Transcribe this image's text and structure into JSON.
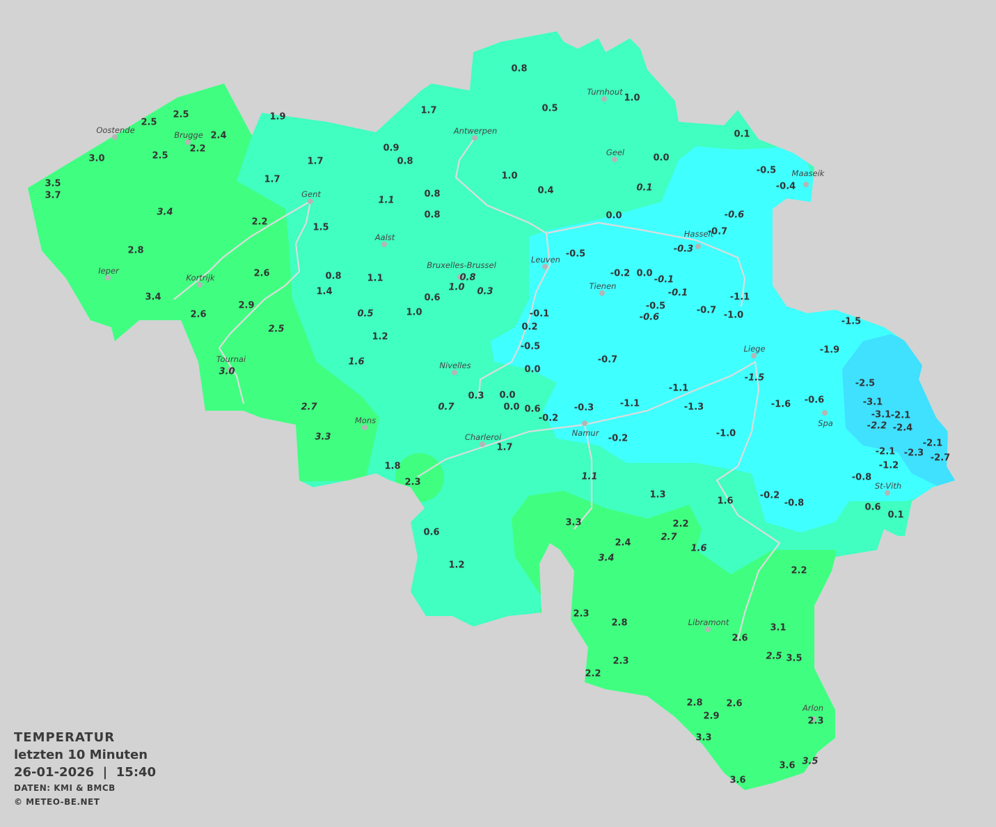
{
  "legend": {
    "title": "TEMPERATUR",
    "subtitle": "letzten 10 Minuten",
    "datetime": "26-01-2026  |  15:40",
    "source": "DATEN: KMI & BMCB",
    "copyright": "© METEO-BE.NET"
  },
  "colors": {
    "background": "#d3d3d3",
    "zone_2_to_4": "#40ff80",
    "zone_0_to_2": "#40ffc0",
    "zone_minus2_to_0": "#40ffff",
    "zone_below_minus2": "#40e0ff",
    "rivers": "#dcdcdc"
  },
  "unit": "°C",
  "cities": [
    "Oostende",
    "Brugge",
    "Antwerpen",
    "Turnhout",
    "Geel",
    "Maaseik",
    "Gent",
    "Hasselt",
    "Aalst",
    "Leuven",
    "Bruxelles-Brussel",
    "Ieper",
    "Kortrijk",
    "Tienen",
    "Liege",
    "Nivelles",
    "Tournai",
    "Spa",
    "Namur",
    "Mons",
    "Charleroi",
    "St-Vith",
    "Libramont",
    "Arlon"
  ],
  "stations": [
    {
      "v": "0.8"
    },
    {
      "v": "0.5"
    },
    {
      "v": "1.0"
    },
    {
      "v": "1.7"
    },
    {
      "v": "1.9"
    },
    {
      "v": "2.5"
    },
    {
      "v": "2.5"
    },
    {
      "v": "2.4"
    },
    {
      "v": "2.2"
    },
    {
      "v": "2.5"
    },
    {
      "v": "3.0"
    },
    {
      "v": "3.5"
    },
    {
      "v": "3.7"
    },
    {
      "v": "0.9"
    },
    {
      "v": "0.8"
    },
    {
      "v": "1.7"
    },
    {
      "v": "1.7"
    },
    {
      "v": "1.0"
    },
    {
      "v": "0.4"
    },
    {
      "v": "0.0"
    },
    {
      "v": "0.1"
    },
    {
      "v": "-0.5"
    },
    {
      "v": "-0.4"
    },
    {
      "v": "0.1",
      "i": true
    },
    {
      "v": "0.8"
    },
    {
      "v": "0.8"
    },
    {
      "v": "1.1",
      "i": true
    },
    {
      "v": "3.4",
      "i": true
    },
    {
      "v": "2.2"
    },
    {
      "v": "1.5"
    },
    {
      "v": "0.0"
    },
    {
      "v": "-0.6",
      "i": true
    },
    {
      "v": "-0.7"
    },
    {
      "v": "-0.3",
      "i": true
    },
    {
      "v": "2.8"
    },
    {
      "v": "-0.5"
    },
    {
      "v": "2.6"
    },
    {
      "v": "0.8"
    },
    {
      "v": "1.1"
    },
    {
      "v": "0.8",
      "i": true
    },
    {
      "v": "-0.2"
    },
    {
      "v": "0.0"
    },
    {
      "v": "-0.1",
      "i": true
    },
    {
      "v": "-0.1",
      "i": true
    },
    {
      "v": "1.4"
    },
    {
      "v": "1.0",
      "i": true
    },
    {
      "v": "0.3",
      "i": true
    },
    {
      "v": "3.4"
    },
    {
      "v": "0.6"
    },
    {
      "v": "-1.1"
    },
    {
      "v": "2.9"
    },
    {
      "v": "2.6"
    },
    {
      "v": "0.5",
      "i": true
    },
    {
      "v": "1.0"
    },
    {
      "v": "-0.1"
    },
    {
      "v": "-0.5"
    },
    {
      "v": "-0.6",
      "i": true
    },
    {
      "v": "-0.7"
    },
    {
      "v": "-1.0"
    },
    {
      "v": "2.5",
      "i": true
    },
    {
      "v": "0.2"
    },
    {
      "v": "1.2"
    },
    {
      "v": "-0.5"
    },
    {
      "v": "-1.5"
    },
    {
      "v": "-1.9"
    },
    {
      "v": "1.6",
      "i": true
    },
    {
      "v": "-0.7"
    },
    {
      "v": "0.0"
    },
    {
      "v": "3.0",
      "i": true
    },
    {
      "v": "-1.5",
      "i": true
    },
    {
      "v": "-2.5"
    },
    {
      "v": "0.3"
    },
    {
      "v": "0.0"
    },
    {
      "v": "-1.1"
    },
    {
      "v": "0.0"
    },
    {
      "v": "0.6"
    },
    {
      "v": "-0.3"
    },
    {
      "v": "-1.1"
    },
    {
      "v": "-1.3"
    },
    {
      "v": "-1.6"
    },
    {
      "v": "-0.6"
    },
    {
      "v": "-3.1"
    },
    {
      "v": "-3.1"
    },
    {
      "v": "-2.1"
    },
    {
      "v": "-2.2",
      "i": true
    },
    {
      "v": "-2.4"
    },
    {
      "v": "2.7",
      "i": true
    },
    {
      "v": "0.7",
      "i": true
    },
    {
      "v": "-0.2"
    },
    {
      "v": "3.3",
      "i": true
    },
    {
      "v": "-0.2"
    },
    {
      "v": "-1.0"
    },
    {
      "v": "-2.1"
    },
    {
      "v": "-2.1"
    },
    {
      "v": "-2.3"
    },
    {
      "v": "-2.7"
    },
    {
      "v": "1.7"
    },
    {
      "v": "1.8"
    },
    {
      "v": "-1.2"
    },
    {
      "v": "2.3"
    },
    {
      "v": "1.1",
      "i": true
    },
    {
      "v": "-0.8"
    },
    {
      "v": "1.3"
    },
    {
      "v": "1.6"
    },
    {
      "v": "-0.2"
    },
    {
      "v": "-0.8"
    },
    {
      "v": "0.6"
    },
    {
      "v": "0.1"
    },
    {
      "v": "3.3"
    },
    {
      "v": "2.2"
    },
    {
      "v": "2.7",
      "i": true
    },
    {
      "v": "0.6"
    },
    {
      "v": "2.4"
    },
    {
      "v": "1.6",
      "i": true
    },
    {
      "v": "3.4",
      "i": true
    },
    {
      "v": "1.2"
    },
    {
      "v": "2.2"
    },
    {
      "v": "2.3"
    },
    {
      "v": "2.8"
    },
    {
      "v": "3.1"
    },
    {
      "v": "2.6"
    },
    {
      "v": "2.5",
      "i": true
    },
    {
      "v": "3.5"
    },
    {
      "v": "2.3"
    },
    {
      "v": "2.2"
    },
    {
      "v": "2.8"
    },
    {
      "v": "2.6"
    },
    {
      "v": "2.9"
    },
    {
      "v": "2.3"
    },
    {
      "v": "3.3"
    },
    {
      "v": "3.6"
    },
    {
      "v": "3.5",
      "i": true
    },
    {
      "v": "3.6"
    }
  ]
}
